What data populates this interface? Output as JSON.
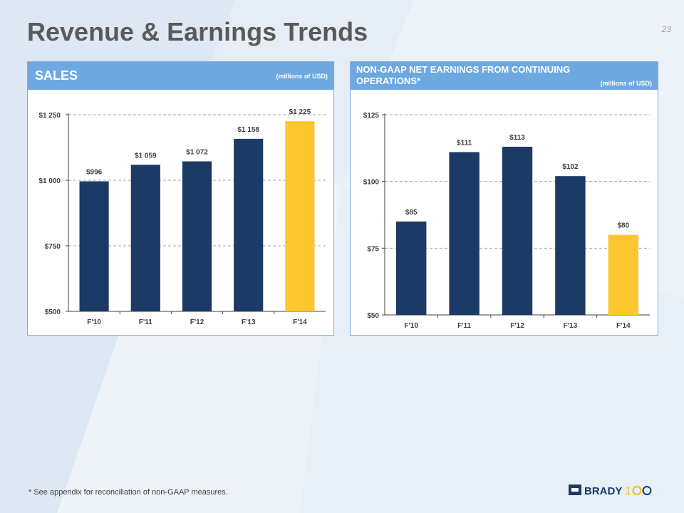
{
  "slide": {
    "title": "Revenue & Earnings Trends",
    "page_number": "23",
    "footnote": "*  See appendix for reconciliation of non-GAAP measures.",
    "logo_text": "BRADY 100"
  },
  "panels": {
    "sales": {
      "title": "SALES",
      "unit": "(millions of USD)"
    },
    "earnings": {
      "title": "NON-GAAP NET EARNINGS FROM CONTINUING OPERATIONS*",
      "title_line1": "NON-GAAP NET EARNINGS FROM CONTINUING",
      "title_line2": "OPERATIONS*",
      "unit": "(millions of USD)"
    }
  },
  "colors": {
    "bar": "#1b3a65",
    "highlight": "#fdc52e",
    "header": "#6ea8e0",
    "title": "#5a5a5a"
  },
  "chart_data": [
    {
      "type": "bar",
      "title": "SALES",
      "categories": [
        "F'10",
        "F'11",
        "F'12",
        "F'13",
        "F'14"
      ],
      "values": [
        996,
        1059,
        1072,
        1158,
        1225
      ],
      "data_labels": [
        "$996",
        "$1 059",
        "$1 072",
        "$1 158",
        "$1 225"
      ],
      "ylim": [
        500,
        1250
      ],
      "yticks": [
        500,
        750,
        1000,
        1250
      ],
      "ytick_labels": [
        "$500",
        "$750",
        "$1 000",
        "$1 250"
      ],
      "highlight_index": 4,
      "grid": true
    },
    {
      "type": "bar",
      "title": "NON-GAAP NET EARNINGS FROM CONTINUING OPERATIONS*",
      "categories": [
        "F'10",
        "F'11",
        "F'12",
        "F'13",
        "F'14"
      ],
      "values": [
        85,
        111,
        113,
        102,
        80
      ],
      "data_labels": [
        "$85",
        "$111",
        "$113",
        "$102",
        "$80"
      ],
      "ylim": [
        50,
        125
      ],
      "yticks": [
        50,
        75,
        100,
        125
      ],
      "ytick_labels": [
        "$50",
        "$75",
        "$100",
        "$125"
      ],
      "highlight_index": 4,
      "grid": true
    }
  ]
}
